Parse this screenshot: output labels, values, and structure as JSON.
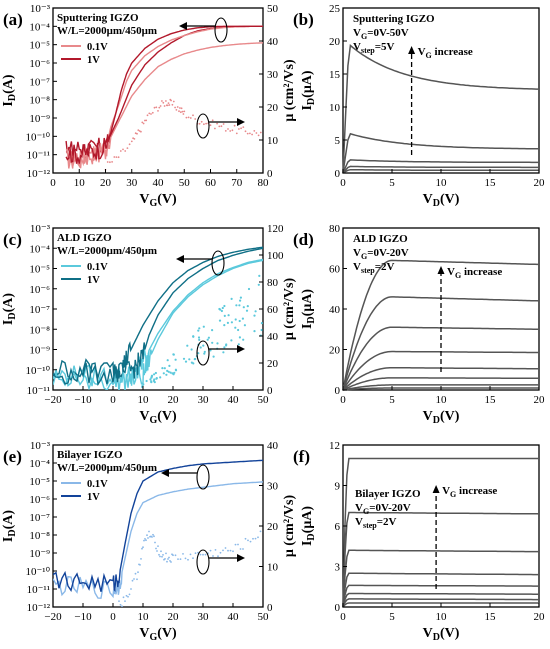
{
  "chart_data": [
    {
      "id": "a",
      "type": "line",
      "panel_label": "(a)",
      "annotations": [
        "Sputtering IGZO",
        "W/L=2000μm/450μm"
      ],
      "xlabel": "V",
      "xlabel_sub": "G",
      "xlabel_unit": "(V)",
      "ylabel": "I",
      "ylabel_sub": "D",
      "ylabel_unit": "(A)",
      "y2label": "μ (cm²/Vs)",
      "x_ticks": [
        "0",
        "10",
        "20",
        "30",
        "40",
        "50",
        "60",
        "70",
        "80"
      ],
      "y_ticks": [
        "10⁻¹²",
        "10⁻¹¹",
        "10⁻¹⁰",
        "10⁻⁹",
        "10⁻⁸",
        "10⁻⁷",
        "10⁻⁶",
        "10⁻⁵",
        "10⁻⁴",
        "10⁻³"
      ],
      "y2_ticks": [
        "0",
        "10",
        "20",
        "30",
        "40",
        "50"
      ],
      "xlim": [
        0,
        80
      ],
      "ylog10lim": [
        -12,
        -3
      ],
      "y2lim": [
        0,
        50
      ],
      "series": [
        {
          "name": "0.1V",
          "color": "#e8898b",
          "axis": "log",
          "x": [
            5,
            10,
            15,
            20,
            25,
            30,
            35,
            40,
            45,
            50,
            55,
            60,
            65,
            70,
            75,
            80
          ],
          "y_log10": [
            -11.3,
            -11.2,
            -11.0,
            -10.6,
            -9.2,
            -7.8,
            -6.9,
            -6.2,
            -5.8,
            -5.5,
            -5.3,
            -5.15,
            -5.05,
            -4.98,
            -4.93,
            -4.9
          ]
        },
        {
          "name": "1V",
          "color": "#b2182b",
          "axis": "log",
          "x": [
            5,
            10,
            15,
            20,
            25,
            30,
            35,
            40,
            45,
            50,
            55,
            60,
            65,
            70,
            75,
            80
          ],
          "y_log10": [
            -10.8,
            -10.6,
            -10.7,
            -10.5,
            -9.0,
            -7.2,
            -6.1,
            -5.4,
            -4.9,
            -4.5,
            -4.25,
            -4.12,
            -4.05,
            -4.02,
            -4.0,
            -4.0
          ]
        },
        {
          "name": "0.1V",
          "color": "#e8898b",
          "axis": "log",
          "x": [
            5,
            10,
            15,
            20,
            22,
            25,
            28,
            30,
            35,
            40,
            45,
            50,
            55,
            60,
            65,
            70,
            75,
            80
          ],
          "y_log10": [
            -11.2,
            -11.3,
            -11.0,
            -10.8,
            -9.5,
            -8.3,
            -7.0,
            -6.4,
            -5.6,
            -5.1,
            -4.75,
            -4.5,
            -4.3,
            -4.15,
            -4.07,
            -4.02,
            -4.0,
            -4.0
          ]
        },
        {
          "name": "1V",
          "color": "#b2182b",
          "axis": "log",
          "x": [
            5,
            10,
            15,
            20,
            22,
            24,
            26,
            28,
            30,
            35,
            40,
            45,
            50,
            55,
            60,
            65,
            70,
            75,
            80
          ],
          "y_log10": [
            -10.9,
            -11.0,
            -10.8,
            -10.6,
            -9.8,
            -8.7,
            -7.5,
            -6.6,
            -6.0,
            -5.2,
            -4.7,
            -4.4,
            -4.2,
            -4.08,
            -4.02,
            -4.0,
            -4.0,
            -4.0,
            -4.0
          ]
        },
        {
          "name": "μ",
          "color": "#e8898b",
          "axis": "lin",
          "x": [
            20,
            25,
            30,
            33,
            36,
            40,
            43,
            45,
            48,
            50,
            55,
            60,
            65,
            70,
            75,
            80
          ],
          "y": [
            2,
            5,
            9,
            13,
            17,
            20,
            21.5,
            21,
            19.5,
            18,
            16,
            15,
            14,
            13,
            12.5,
            12
          ]
        }
      ],
      "legend": [
        {
          "name": "0.1V",
          "color": "#e8898b"
        },
        {
          "name": "1V",
          "color": "#b2182b"
        }
      ]
    },
    {
      "id": "b",
      "type": "line",
      "panel_label": "(b)",
      "annotations": [
        "Sputtering IGZO",
        "V_G=0V-50V",
        "V_step=5V",
        "V_G increase"
      ],
      "xlabel": "V",
      "xlabel_sub": "D",
      "xlabel_unit": "(V)",
      "ylabel": "I",
      "ylabel_sub": "D",
      "ylabel_unit": "(μA)",
      "x_ticks": [
        "0",
        "5",
        "10",
        "15",
        "20"
      ],
      "y_ticks": [
        "0",
        "5",
        "10",
        "15",
        "20",
        "25"
      ],
      "xlim": [
        0,
        20
      ],
      "ylim": [
        0,
        25
      ],
      "curves_peak": [
        19.5,
        6.0,
        2.0,
        1.0,
        0.5
      ],
      "curves_end": [
        12.5,
        3.6,
        1.6,
        0.85,
        0.4
      ],
      "arrow_x": 7
    },
    {
      "id": "c",
      "type": "line",
      "panel_label": "(c)",
      "annotations": [
        "ALD IGZO",
        "W/L=2000μm/450μm"
      ],
      "xlabel": "V",
      "xlabel_sub": "G",
      "xlabel_unit": "(V)",
      "ylabel": "I",
      "ylabel_sub": "D",
      "ylabel_unit": "(A)",
      "y2label": "μ (cm²/Vs)",
      "x_ticks": [
        "−20",
        "−10",
        "0",
        "10",
        "20",
        "30",
        "40",
        "50"
      ],
      "y_ticks": [
        "10⁻¹¹",
        "10⁻¹⁰",
        "10⁻⁹",
        "10⁻⁸",
        "10⁻⁷",
        "10⁻⁶",
        "10⁻⁵",
        "10⁻⁴",
        "10⁻³"
      ],
      "y2_ticks": [
        "0",
        "20",
        "40",
        "60",
        "80",
        "100",
        "120"
      ],
      "xlim": [
        -20,
        50
      ],
      "ylog10lim": [
        -11,
        -3
      ],
      "y2lim": [
        0,
        120
      ],
      "series": [
        {
          "name": "0.1V",
          "color": "#5bc9dc",
          "axis": "log",
          "x": [
            -20,
            -10,
            0,
            5,
            8,
            10,
            15,
            20,
            25,
            30,
            35,
            40,
            45,
            50
          ],
          "y_log10": [
            -10.3,
            -10.3,
            -10.3,
            -10.3,
            -10.2,
            -9.6,
            -8.2,
            -7.1,
            -6.3,
            -5.7,
            -5.25,
            -4.95,
            -4.7,
            -4.55
          ]
        },
        {
          "name": "1V",
          "color": "#0f6f86",
          "axis": "log",
          "x": [
            -20,
            -10,
            0,
            3,
            5,
            8,
            10,
            15,
            20,
            25,
            30,
            35,
            40,
            45,
            50
          ],
          "y_log10": [
            -10.0,
            -10.0,
            -10.0,
            -9.9,
            -9.3,
            -8.4,
            -7.8,
            -6.6,
            -5.7,
            -5.1,
            -4.7,
            -4.4,
            -4.2,
            -4.05,
            -3.95
          ]
        },
        {
          "name": "0.1V",
          "color": "#5bc9dc",
          "axis": "log",
          "x": [
            -20,
            -10,
            0,
            5,
            10,
            12,
            15,
            20,
            25,
            30,
            35,
            40,
            45,
            50
          ],
          "y_log10": [
            -10.5,
            -10.4,
            -10.6,
            -10.5,
            -10.3,
            -9.5,
            -8.5,
            -7.2,
            -6.4,
            -5.8,
            -5.35,
            -5.0,
            -4.75,
            -4.6
          ]
        },
        {
          "name": "1V",
          "color": "#0f6f86",
          "axis": "log",
          "x": [
            -20,
            -10,
            0,
            5,
            8,
            10,
            12,
            15,
            20,
            25,
            30,
            35,
            40,
            45,
            50
          ],
          "y_log10": [
            -10.2,
            -10.2,
            -10.2,
            -10.1,
            -9.8,
            -9.3,
            -8.3,
            -7.3,
            -6.2,
            -5.5,
            -5.0,
            -4.6,
            -4.35,
            -4.15,
            -4.0
          ]
        }
      ],
      "legend": [
        {
          "name": "0.1V",
          "color": "#5bc9dc"
        },
        {
          "name": "1V",
          "color": "#0f6f86"
        }
      ]
    },
    {
      "id": "d",
      "type": "line",
      "panel_label": "(d)",
      "annotations": [
        "ALD IGZO",
        "V_G=0V-20V",
        "V_step=2V",
        "V_G increase"
      ],
      "xlabel": "V",
      "xlabel_sub": "D",
      "xlabel_unit": "(V)",
      "ylabel": "I",
      "ylabel_sub": "D",
      "ylabel_unit": "(μA)",
      "x_ticks": [
        "0",
        "5",
        "10",
        "15",
        "20"
      ],
      "y_ticks": [
        "0",
        "20",
        "40",
        "60",
        "80"
      ],
      "xlim": [
        0,
        20
      ],
      "ylim": [
        0,
        80
      ],
      "curves_sat": [
        64,
        46,
        31,
        19,
        11,
        6,
        2.5,
        1
      ],
      "curves_end": [
        62,
        44,
        30,
        18.5,
        10.5,
        5.8,
        2.5,
        1
      ],
      "arrow_x": 10
    },
    {
      "id": "e",
      "type": "line",
      "panel_label": "(e)",
      "annotations": [
        "Bilayer IGZO",
        "W/L=2000μm/450μm"
      ],
      "xlabel": "V",
      "xlabel_sub": "G",
      "xlabel_unit": "(V)",
      "ylabel": "I",
      "ylabel_sub": "D",
      "ylabel_unit": "(A)",
      "y2label": "μ (cm²/Vs)",
      "x_ticks": [
        "−20",
        "−10",
        "0",
        "10",
        "20",
        "30",
        "40",
        "50"
      ],
      "y_ticks": [
        "10⁻¹²",
        "10⁻¹¹",
        "10⁻¹⁰",
        "10⁻⁹",
        "10⁻⁸",
        "10⁻⁷",
        "10⁻⁶",
        "10⁻⁵",
        "10⁻⁴",
        "10⁻³"
      ],
      "y2_ticks": [
        "0",
        "10",
        "20",
        "30",
        "40"
      ],
      "xlim": [
        -20,
        50
      ],
      "ylog10lim": [
        -12,
        -3
      ],
      "y2lim": [
        0,
        40
      ],
      "series": [
        {
          "name": "0.1V",
          "color": "#8ab8e8",
          "axis": "log",
          "x": [
            -20,
            -10,
            0,
            2,
            4,
            6,
            8,
            10,
            15,
            20,
            25,
            30,
            35,
            40,
            45,
            50
          ],
          "y_log10": [
            -10.8,
            -10.9,
            -11.1,
            -10.8,
            -9.3,
            -7.8,
            -6.8,
            -6.2,
            -5.8,
            -5.6,
            -5.45,
            -5.35,
            -5.25,
            -5.15,
            -5.1,
            -5.05
          ]
        },
        {
          "name": "1V",
          "color": "#12439a",
          "axis": "log",
          "x": [
            -20,
            -10,
            0,
            2,
            4,
            6,
            8,
            10,
            15,
            20,
            25,
            30,
            35,
            40,
            45,
            50
          ],
          "y_log10": [
            -10.5,
            -10.6,
            -10.8,
            -10.3,
            -8.5,
            -6.8,
            -5.7,
            -5.0,
            -4.5,
            -4.3,
            -4.15,
            -4.05,
            -4.0,
            -3.95,
            -3.9,
            -3.85
          ]
        },
        {
          "name": "μ",
          "color": "#8ab8e8",
          "axis": "lin",
          "x": [
            2,
            5,
            8,
            10,
            12,
            14,
            16,
            18,
            20,
            25,
            30,
            35,
            40,
            45,
            50
          ],
          "y": [
            0.5,
            3,
            8,
            15,
            18,
            16,
            13,
            12,
            12,
            12.5,
            13,
            13.5,
            14,
            16,
            19
          ]
        }
      ],
      "legend": [
        {
          "name": "0.1V",
          "color": "#8ab8e8"
        },
        {
          "name": "1V",
          "color": "#12439a"
        }
      ]
    },
    {
      "id": "f",
      "type": "line",
      "panel_label": "(f)",
      "annotations": [
        "Bilayer IGZO",
        "V_G=0V-20V",
        "V_step=2V",
        "V_G increase"
      ],
      "xlabel": "V",
      "xlabel_sub": "D",
      "xlabel_unit": "(V)",
      "ylabel": "I",
      "ylabel_sub": "D",
      "ylabel_unit": "(μA)",
      "x_ticks": [
        "0",
        "5",
        "10",
        "15",
        "20"
      ],
      "y_ticks": [
        "0",
        "3",
        "6",
        "9",
        "12"
      ],
      "xlim": [
        0,
        20
      ],
      "ylim": [
        0,
        12
      ],
      "curves_sat": [
        11,
        7,
        4.2,
        2.5,
        1.6,
        1.0,
        0.6,
        0.3
      ],
      "curves_end": [
        11,
        6.9,
        4.1,
        2.4,
        1.55,
        0.95,
        0.55,
        0.3
      ],
      "arrow_x": 9.5
    }
  ]
}
